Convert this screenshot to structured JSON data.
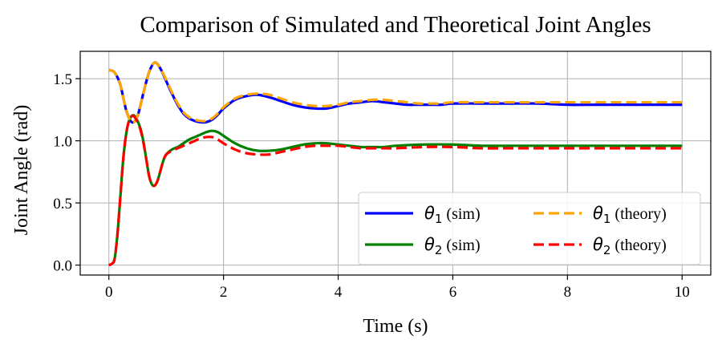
{
  "chart_data": {
    "type": "line",
    "title": "Comparison of Simulated and Theoretical Joint Angles",
    "xlabel": "Time (s)",
    "ylabel": "Joint Angle (rad)",
    "xlim": [
      -0.5,
      10.5
    ],
    "ylim": [
      -0.08,
      1.72
    ],
    "xticks": [
      0,
      2,
      4,
      6,
      8,
      10
    ],
    "xtick_labels": [
      "0",
      "2",
      "4",
      "6",
      "8",
      "10"
    ],
    "yticks": [
      0.0,
      0.5,
      1.0,
      1.5
    ],
    "ytick_labels": [
      "0.0",
      "0.5",
      "1.0",
      "1.5"
    ],
    "grid": true,
    "legend_position": "lower-right",
    "legend_columns": 2,
    "series": [
      {
        "name_symbol": "θ",
        "name_sub": "1",
        "name_suffix": " (sim)",
        "color": "#0000ff",
        "linestyle": "solid",
        "x": [
          0,
          0.1,
          0.2,
          0.3,
          0.4,
          0.5,
          0.6,
          0.7,
          0.8,
          0.9,
          1.0,
          1.1,
          1.2,
          1.3,
          1.4,
          1.5,
          1.6,
          1.7,
          1.8,
          1.9,
          2.0,
          2.2,
          2.4,
          2.6,
          2.8,
          3.0,
          3.2,
          3.4,
          3.6,
          3.8,
          4.0,
          4.2,
          4.4,
          4.6,
          4.8,
          5.0,
          5.2,
          5.4,
          5.6,
          5.8,
          6.0,
          6.5,
          7.0,
          7.5,
          8.0,
          8.5,
          9.0,
          9.5,
          10.0
        ],
        "y": [
          1.57,
          1.55,
          1.45,
          1.25,
          1.15,
          1.2,
          1.38,
          1.55,
          1.63,
          1.58,
          1.48,
          1.38,
          1.29,
          1.22,
          1.18,
          1.16,
          1.15,
          1.15,
          1.17,
          1.21,
          1.26,
          1.33,
          1.36,
          1.37,
          1.35,
          1.32,
          1.29,
          1.27,
          1.26,
          1.26,
          1.28,
          1.3,
          1.31,
          1.32,
          1.31,
          1.3,
          1.29,
          1.29,
          1.29,
          1.29,
          1.3,
          1.3,
          1.3,
          1.3,
          1.29,
          1.29,
          1.29,
          1.29,
          1.29
        ]
      },
      {
        "name_symbol": "θ",
        "name_sub": "1",
        "name_suffix": " (theory)",
        "color": "#ffa500",
        "linestyle": "dashed",
        "x": [
          0,
          0.1,
          0.2,
          0.3,
          0.4,
          0.5,
          0.6,
          0.7,
          0.8,
          0.9,
          1.0,
          1.1,
          1.2,
          1.3,
          1.4,
          1.5,
          1.6,
          1.7,
          1.8,
          1.9,
          2.0,
          2.2,
          2.4,
          2.6,
          2.8,
          3.0,
          3.2,
          3.4,
          3.6,
          3.8,
          4.0,
          4.2,
          4.4,
          4.6,
          4.8,
          5.0,
          5.2,
          5.4,
          5.6,
          5.8,
          6.0,
          6.5,
          7.0,
          7.5,
          8.0,
          8.5,
          9.0,
          9.5,
          10.0
        ],
        "y": [
          1.57,
          1.55,
          1.45,
          1.25,
          1.15,
          1.2,
          1.38,
          1.55,
          1.63,
          1.58,
          1.49,
          1.39,
          1.3,
          1.23,
          1.19,
          1.17,
          1.16,
          1.16,
          1.18,
          1.22,
          1.27,
          1.34,
          1.37,
          1.38,
          1.37,
          1.34,
          1.31,
          1.29,
          1.28,
          1.28,
          1.29,
          1.31,
          1.32,
          1.33,
          1.33,
          1.32,
          1.31,
          1.3,
          1.3,
          1.3,
          1.31,
          1.31,
          1.31,
          1.31,
          1.31,
          1.31,
          1.31,
          1.31,
          1.31
        ]
      },
      {
        "name_symbol": "θ",
        "name_sub": "2",
        "name_suffix": " (sim)",
        "color": "#008000",
        "linestyle": "solid",
        "x": [
          0,
          0.05,
          0.1,
          0.15,
          0.2,
          0.25,
          0.3,
          0.35,
          0.4,
          0.45,
          0.5,
          0.55,
          0.6,
          0.65,
          0.7,
          0.75,
          0.8,
          0.85,
          0.9,
          0.95,
          1.0,
          1.1,
          1.2,
          1.3,
          1.4,
          1.5,
          1.6,
          1.7,
          1.8,
          1.9,
          2.0,
          2.2,
          2.4,
          2.6,
          2.8,
          3.0,
          3.2,
          3.4,
          3.6,
          3.8,
          4.0,
          4.2,
          4.4,
          4.6,
          4.8,
          5.0,
          5.5,
          6.0,
          6.5,
          7.0,
          7.5,
          8.0,
          8.5,
          9.0,
          9.5,
          10.0
        ],
        "y": [
          0.0,
          0.01,
          0.05,
          0.25,
          0.55,
          0.85,
          1.05,
          1.16,
          1.2,
          1.2,
          1.16,
          1.1,
          1.0,
          0.86,
          0.72,
          0.65,
          0.64,
          0.68,
          0.76,
          0.84,
          0.89,
          0.93,
          0.95,
          0.98,
          1.01,
          1.03,
          1.05,
          1.07,
          1.08,
          1.07,
          1.04,
          0.98,
          0.94,
          0.92,
          0.92,
          0.93,
          0.95,
          0.97,
          0.98,
          0.98,
          0.97,
          0.96,
          0.95,
          0.95,
          0.95,
          0.96,
          0.97,
          0.97,
          0.96,
          0.96,
          0.96,
          0.96,
          0.96,
          0.96,
          0.96,
          0.96
        ]
      },
      {
        "name_symbol": "θ",
        "name_sub": "2",
        "name_suffix": " (theory)",
        "color": "#ff0000",
        "linestyle": "dashed",
        "x": [
          0,
          0.05,
          0.1,
          0.15,
          0.2,
          0.25,
          0.3,
          0.35,
          0.4,
          0.45,
          0.5,
          0.55,
          0.6,
          0.65,
          0.7,
          0.75,
          0.8,
          0.85,
          0.9,
          0.95,
          1.0,
          1.1,
          1.2,
          1.3,
          1.4,
          1.5,
          1.6,
          1.7,
          1.8,
          1.9,
          2.0,
          2.2,
          2.4,
          2.6,
          2.8,
          3.0,
          3.2,
          3.4,
          3.6,
          3.8,
          4.0,
          4.2,
          4.4,
          4.6,
          4.8,
          5.0,
          5.5,
          6.0,
          6.5,
          7.0,
          7.5,
          8.0,
          8.5,
          9.0,
          9.5,
          10.0
        ],
        "y": [
          0.0,
          0.01,
          0.05,
          0.25,
          0.55,
          0.85,
          1.05,
          1.16,
          1.2,
          1.19,
          1.15,
          1.09,
          0.99,
          0.86,
          0.72,
          0.65,
          0.64,
          0.68,
          0.76,
          0.84,
          0.89,
          0.92,
          0.94,
          0.96,
          0.98,
          1.0,
          1.02,
          1.03,
          1.03,
          1.01,
          0.98,
          0.93,
          0.9,
          0.89,
          0.89,
          0.91,
          0.93,
          0.95,
          0.96,
          0.96,
          0.96,
          0.95,
          0.94,
          0.94,
          0.94,
          0.94,
          0.95,
          0.95,
          0.94,
          0.94,
          0.94,
          0.94,
          0.94,
          0.94,
          0.94,
          0.94
        ]
      }
    ]
  }
}
